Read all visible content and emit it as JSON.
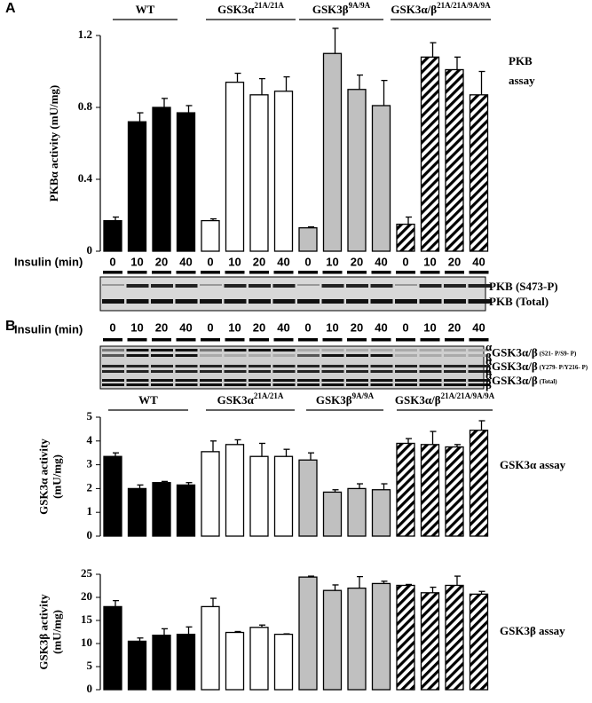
{
  "panels": {
    "A": "A",
    "B": "B"
  },
  "insulin_label": "Insulin (min)",
  "blot_A": {
    "labels": [
      "PKB (S473-P)",
      "PKB (Total)"
    ]
  },
  "blot_B": {
    "labels": [
      {
        "text": "GSK3α/β",
        "small": "(S21- P/S9- P)"
      },
      {
        "text": "GSK3α/β",
        "small": "(Y279- P/Y216- P)"
      },
      {
        "text": "GSK3α/β",
        "small": "(Total)"
      }
    ],
    "isoforms": [
      "α",
      "β"
    ]
  },
  "chart_data": [
    {
      "type": "bar",
      "ylabel": [
        "PKBα activity (mU/mg)"
      ],
      "annotation": [
        "PKB",
        "assay"
      ],
      "group_labels": [
        {
          "text": "WT"
        },
        {
          "text": "GSK3α",
          "sup": "21A/21A"
        },
        {
          "text": "GSK3β",
          "sup": "9A/9A"
        },
        {
          "text": "GSK3α/β",
          "sup": "21A/21A/9A/9A"
        }
      ],
      "bar_fills": [
        "#000000",
        "#ffffff",
        "#c0c0c0",
        "hatch"
      ],
      "categories": [
        "0",
        "10",
        "20",
        "40",
        "0",
        "10",
        "20",
        "40",
        "0",
        "10",
        "20",
        "40",
        "0",
        "10",
        "20",
        "40"
      ],
      "values": [
        0.17,
        0.72,
        0.8,
        0.77,
        0.17,
        0.94,
        0.87,
        0.89,
        0.13,
        1.1,
        0.9,
        0.81,
        0.15,
        1.08,
        1.01,
        0.87
      ],
      "errors": [
        0.02,
        0.05,
        0.05,
        0.04,
        0.01,
        0.05,
        0.09,
        0.08,
        0.005,
        0.14,
        0.08,
        0.14,
        0.04,
        0.08,
        0.07,
        0.13
      ],
      "ylim": [
        0,
        1.2
      ],
      "yticks": [
        0,
        0.4,
        0.8,
        1.2
      ]
    },
    {
      "type": "bar",
      "ylabel": [
        "GSK3α activity",
        "(mU/mg)"
      ],
      "annotation": [
        "GSK3α assay"
      ],
      "group_labels": [
        {
          "text": "WT"
        },
        {
          "text": "GSK3α",
          "sup": "21A/21A"
        },
        {
          "text": "GSK3β",
          "sup": "9A/9A"
        },
        {
          "text": "GSK3α/β",
          "sup": "21A/21A/9A/9A"
        }
      ],
      "bar_fills": [
        "#000000",
        "#ffffff",
        "#c0c0c0",
        "hatch"
      ],
      "categories": [
        "0",
        "10",
        "20",
        "40",
        "0",
        "10",
        "20",
        "40",
        "0",
        "10",
        "20",
        "40",
        "0",
        "10",
        "20",
        "40"
      ],
      "values": [
        3.35,
        2.0,
        2.25,
        2.15,
        3.55,
        3.85,
        3.35,
        3.35,
        3.2,
        1.85,
        2.0,
        1.95,
        3.9,
        3.85,
        3.75,
        4.45
      ],
      "errors": [
        0.15,
        0.15,
        0.05,
        0.1,
        0.45,
        0.2,
        0.55,
        0.3,
        0.3,
        0.1,
        0.2,
        0.25,
        0.2,
        0.55,
        0.1,
        0.4
      ],
      "ylim": [
        0,
        5
      ],
      "yticks": [
        0,
        1,
        2,
        3,
        4,
        5
      ]
    },
    {
      "type": "bar",
      "ylabel": [
        "GSK3β activity",
        "(mU/mg)"
      ],
      "annotation": [
        "GSK3β assay"
      ],
      "bar_fills": [
        "#000000",
        "#ffffff",
        "#c0c0c0",
        "hatch"
      ],
      "values": [
        18,
        10.5,
        11.8,
        12,
        18,
        12.4,
        13.5,
        12,
        24.4,
        21.5,
        22,
        23,
        22.6,
        21,
        22.6,
        20.7
      ],
      "errors": [
        1.3,
        0.7,
        1.4,
        1.6,
        1.8,
        0.2,
        0.5,
        0.1,
        0.2,
        1.2,
        2.5,
        0.5,
        0.2,
        1.2,
        2,
        0.6
      ],
      "ylim": [
        0,
        25
      ],
      "yticks": [
        0,
        5,
        10,
        15,
        20,
        25
      ]
    }
  ]
}
